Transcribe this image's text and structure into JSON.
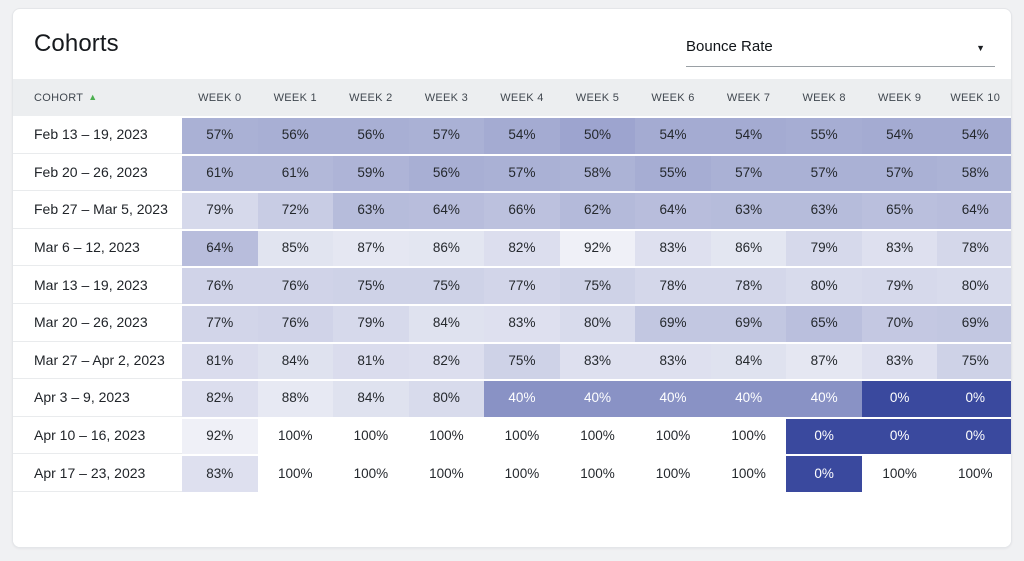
{
  "card": {
    "title": "Cohorts"
  },
  "metric_select": {
    "value": "Bounce Rate"
  },
  "icons": {
    "dropdown_caret": "▼",
    "sort_ascending": "▲"
  },
  "table": {
    "cohort_header": "COHORT",
    "sort_icon_color": "#4caf50"
  },
  "chart_data": {
    "type": "heatmap",
    "title": "Cohorts",
    "metric": "Bounce Rate",
    "unit": "%",
    "x_labels": [
      "WEEK 0",
      "WEEK 1",
      "WEEK 2",
      "WEEK 3",
      "WEEK 4",
      "WEEK 5",
      "WEEK 6",
      "WEEK 7",
      "WEEK 8",
      "WEEK 9",
      "WEEK 10"
    ],
    "y_labels": [
      "Feb 13 – 19, 2023",
      "Feb 20 – 26, 2023",
      "Feb 27 – Mar 5, 2023",
      "Mar 6 – 12, 2023",
      "Mar 13 – 19, 2023",
      "Mar 20 – 26, 2023",
      "Mar 27 – Apr 2, 2023",
      "Apr 3 – 9, 2023",
      "Apr 10 – 16, 2023",
      "Apr 17 – 23, 2023"
    ],
    "rows": [
      [
        57,
        56,
        56,
        57,
        54,
        50,
        54,
        54,
        55,
        54,
        54
      ],
      [
        61,
        61,
        59,
        56,
        57,
        58,
        55,
        57,
        57,
        57,
        58
      ],
      [
        79,
        72,
        63,
        64,
        66,
        62,
        64,
        63,
        63,
        65,
        64
      ],
      [
        64,
        85,
        87,
        86,
        82,
        92,
        83,
        86,
        79,
        83,
        78
      ],
      [
        76,
        76,
        75,
        75,
        77,
        75,
        78,
        78,
        80,
        79,
        80
      ],
      [
        77,
        76,
        79,
        84,
        83,
        80,
        69,
        69,
        65,
        70,
        69
      ],
      [
        81,
        84,
        81,
        82,
        75,
        83,
        83,
        84,
        87,
        83,
        75
      ],
      [
        82,
        88,
        84,
        80,
        40,
        40,
        40,
        40,
        40,
        0,
        0
      ],
      [
        92,
        100,
        100,
        100,
        100,
        100,
        100,
        100,
        0,
        0,
        0
      ],
      [
        83,
        100,
        100,
        100,
        100,
        100,
        100,
        100,
        0,
        100,
        100
      ]
    ],
    "color_scale": {
      "min_value": 0,
      "max_value": 100,
      "min_color_rgb": [
        58,
        73,
        158
      ],
      "max_color_rgb": [
        255,
        255,
        255
      ],
      "dark_text_color": "#24282d",
      "light_text_color": "#ffffff",
      "light_text_threshold": 45
    },
    "legend": "none",
    "grid": "off"
  }
}
